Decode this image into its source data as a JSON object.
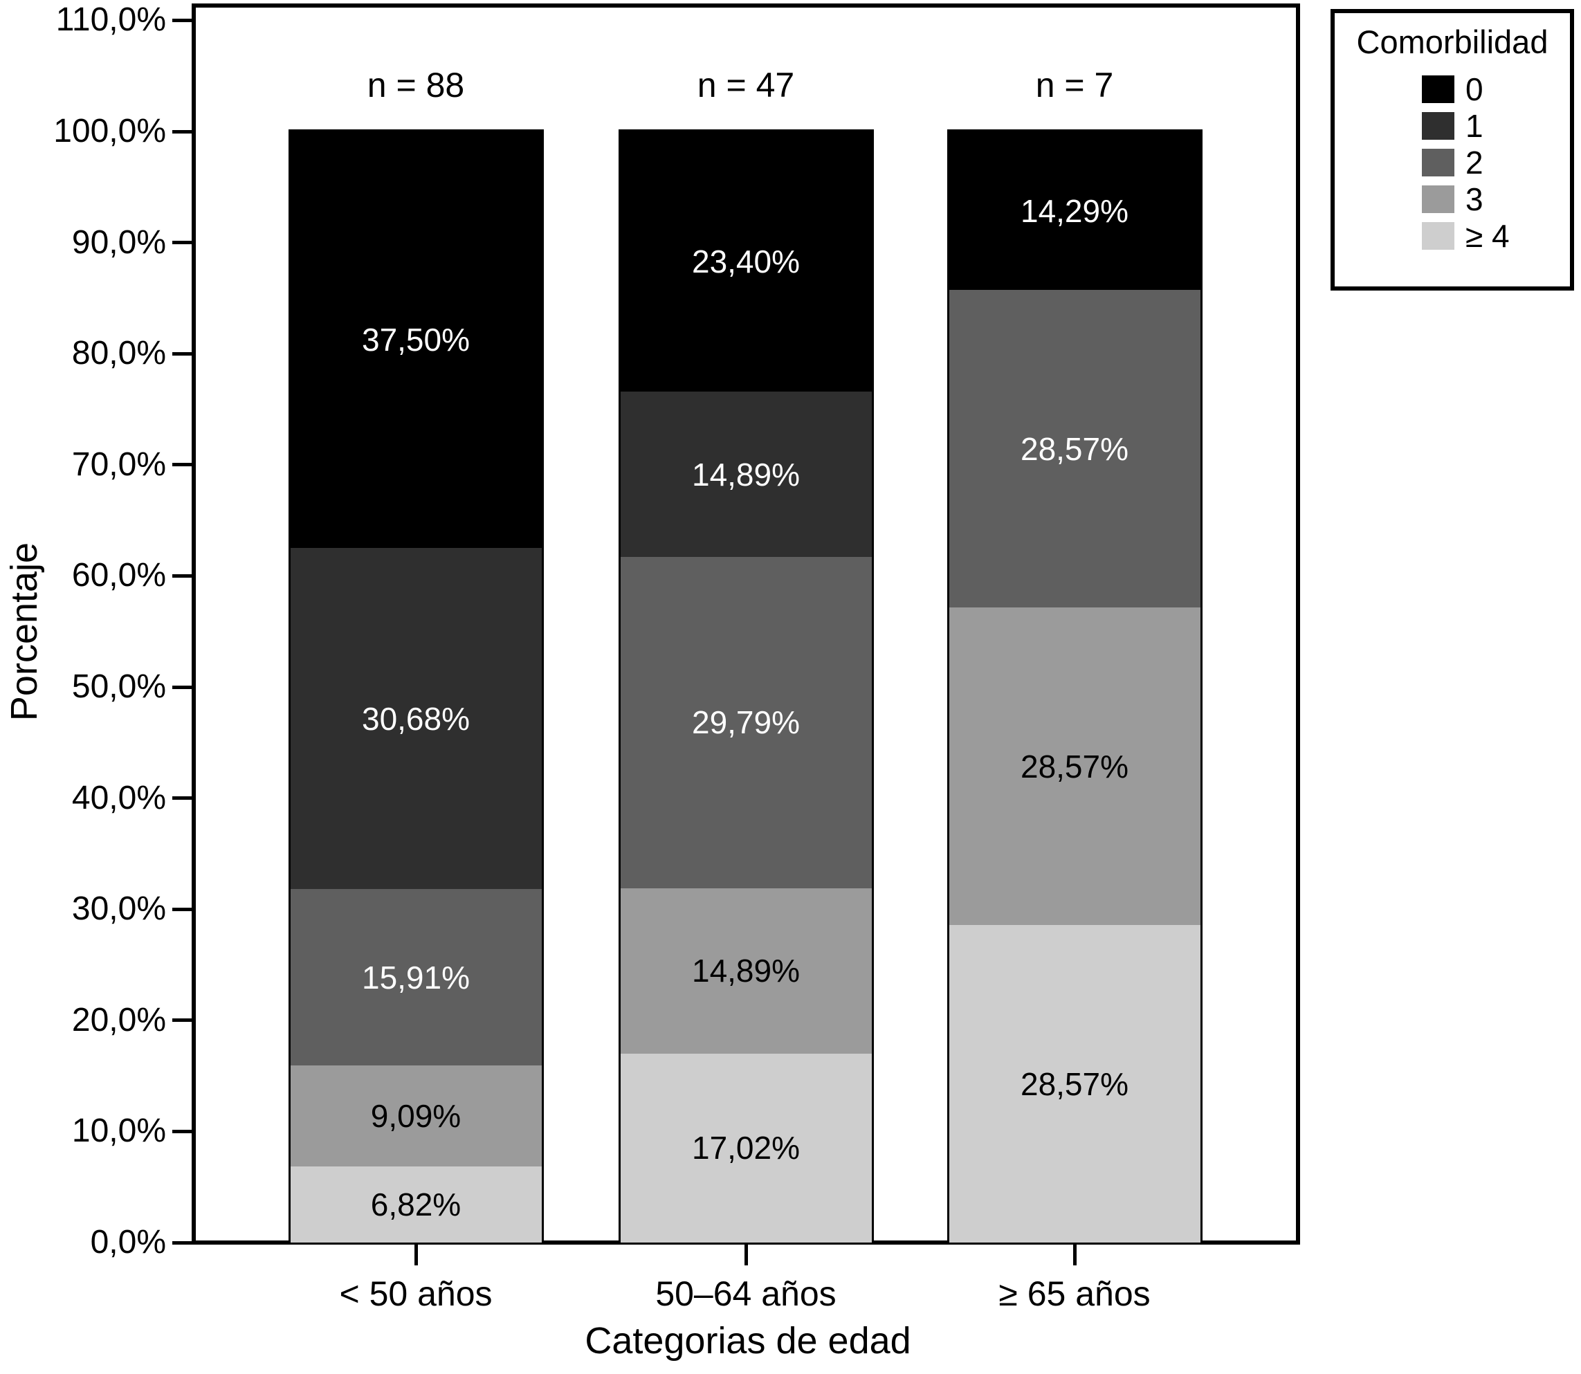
{
  "chart_data": {
    "type": "bar",
    "stacked": true,
    "title": "",
    "xlabel": "Categorias de edad",
    "ylabel": "Porcentaje",
    "ylim": [
      0,
      110
    ],
    "grid": false,
    "legend_position": "top-right",
    "yticks": [
      {
        "value": 110,
        "label": "110,0%"
      },
      {
        "value": 100,
        "label": "100,0%"
      },
      {
        "value": 90,
        "label": "90,0%"
      },
      {
        "value": 80,
        "label": "80,0%"
      },
      {
        "value": 70,
        "label": "70,0%"
      },
      {
        "value": 60,
        "label": "60,0%"
      },
      {
        "value": 50,
        "label": "50,0%"
      },
      {
        "value": 40,
        "label": "40,0%"
      },
      {
        "value": 30,
        "label": "30,0%"
      },
      {
        "value": 20,
        "label": "20,0%"
      },
      {
        "value": 10,
        "label": "10,0%"
      },
      {
        "value": 0,
        "label": "0,0%"
      }
    ],
    "legend": {
      "title": "Comorbilidad",
      "entries": [
        {
          "label": "0",
          "color": "#000000"
        },
        {
          "label": "1",
          "color": "#2f2f2f"
        },
        {
          "label": "2",
          "color": "#5f5f5f"
        },
        {
          "label": "3",
          "color": "#9b9b9b"
        },
        {
          "label": "≥ 4",
          "color": "#cecece"
        }
      ]
    },
    "categories": [
      "< 50 años",
      "50–64 años",
      "≥ 65 años"
    ],
    "bars": [
      {
        "category": "< 50 años",
        "n_label": "n = 88",
        "segments": [
          {
            "series": "0",
            "value": 37.5,
            "label": "37,50%",
            "color": "#000000",
            "label_color": "#ffffff"
          },
          {
            "series": "1",
            "value": 30.68,
            "label": "30,68%",
            "color": "#2f2f2f",
            "label_color": "#ffffff"
          },
          {
            "series": "2",
            "value": 15.91,
            "label": "15,91%",
            "color": "#5f5f5f",
            "label_color": "#ffffff"
          },
          {
            "series": "3",
            "value": 9.09,
            "label": "9,09%",
            "color": "#9b9b9b",
            "label_color": "#000000"
          },
          {
            "series": "≥ 4",
            "value": 6.82,
            "label": "6,82%",
            "color": "#cecece",
            "label_color": "#000000"
          }
        ]
      },
      {
        "category": "50–64 años",
        "n_label": "n = 47",
        "segments": [
          {
            "series": "0",
            "value": 23.4,
            "label": "23,40%",
            "color": "#000000",
            "label_color": "#ffffff"
          },
          {
            "series": "1",
            "value": 14.89,
            "label": "14,89%",
            "color": "#2f2f2f",
            "label_color": "#ffffff"
          },
          {
            "series": "2",
            "value": 29.79,
            "label": "29,79%",
            "color": "#5f5f5f",
            "label_color": "#ffffff"
          },
          {
            "series": "3",
            "value": 14.89,
            "label": "14,89%",
            "color": "#9b9b9b",
            "label_color": "#000000"
          },
          {
            "series": "≥ 4",
            "value": 17.02,
            "label": "17,02%",
            "color": "#cecece",
            "label_color": "#000000"
          }
        ]
      },
      {
        "category": "≥ 65 años",
        "n_label": "n = 7",
        "segments": [
          {
            "series": "0",
            "value": 14.29,
            "label": "14,29%",
            "color": "#000000",
            "label_color": "#ffffff"
          },
          {
            "series": "2",
            "value": 28.57,
            "label": "28,57%",
            "color": "#5f5f5f",
            "label_color": "#ffffff"
          },
          {
            "series": "3",
            "value": 28.57,
            "label": "28,57%",
            "color": "#9b9b9b",
            "label_color": "#000000"
          },
          {
            "series": "≥ 4",
            "value": 28.57,
            "label": "28,57%",
            "color": "#cecece",
            "label_color": "#000000"
          }
        ]
      }
    ]
  }
}
